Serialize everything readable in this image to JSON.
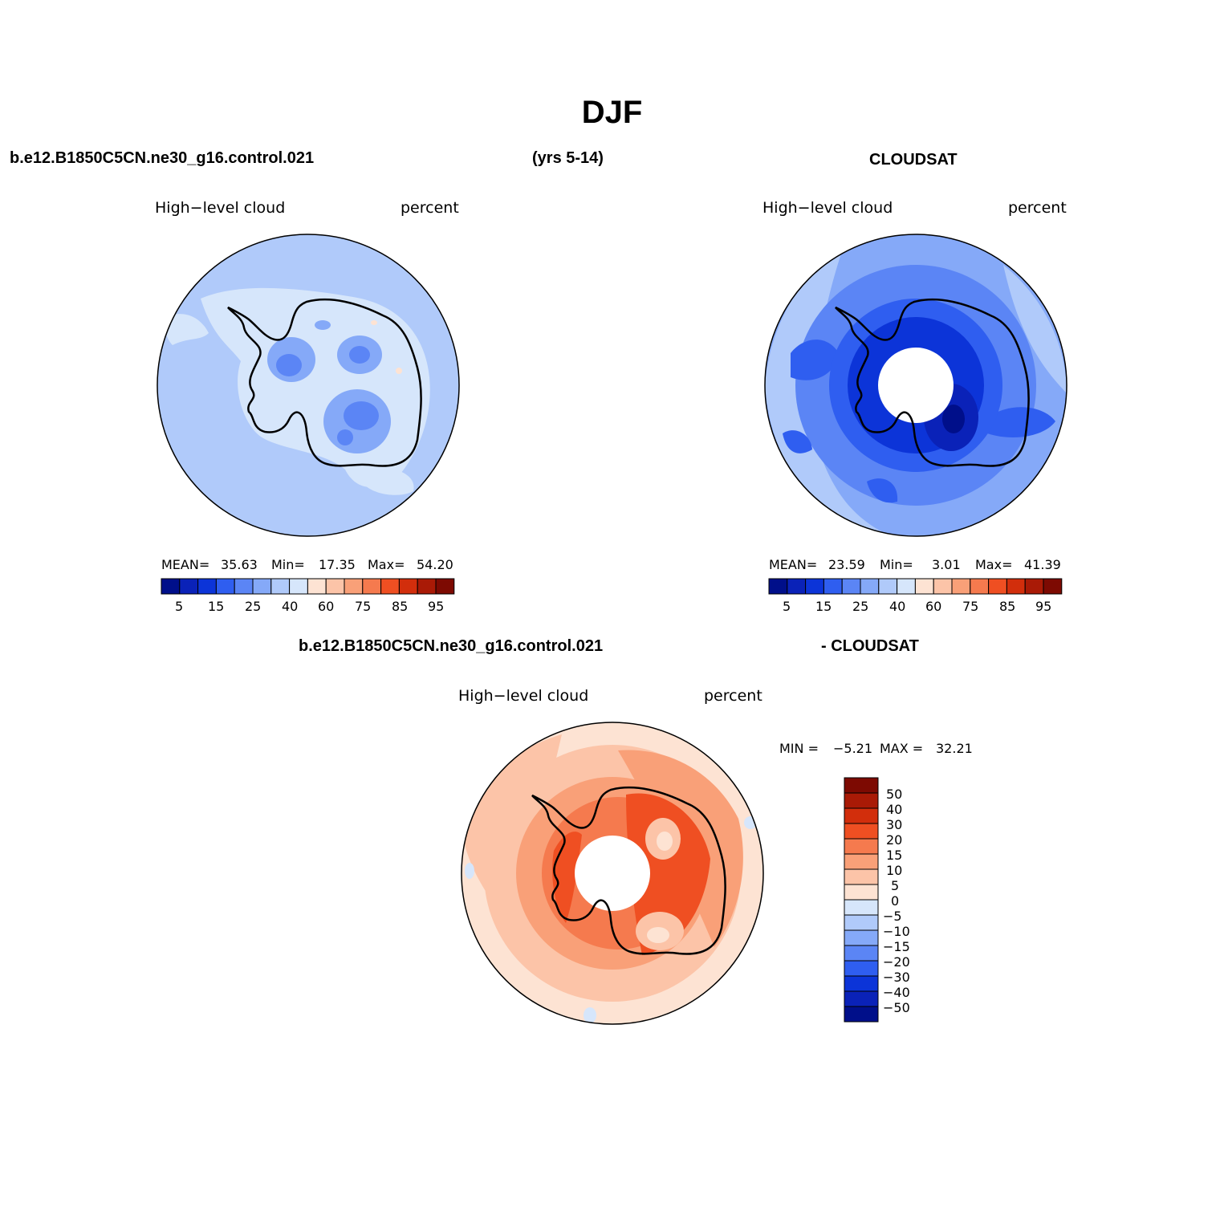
{
  "title": "DJF",
  "header": {
    "case_name": "b.e12.B1850C5CN.ne30_g16.control.021",
    "years": "(yrs 5-14)",
    "obs_name": "CLOUDSAT",
    "diff_case": "b.e12.B1850C5CN.ne30_g16.control.021",
    "diff_obs": "- CLOUDSAT"
  },
  "panels": [
    {
      "id": "model",
      "variable": "High−level cloud",
      "units": "percent",
      "stats": {
        "mean_label": "MEAN=",
        "mean": "35.63",
        "min_label": "Min=",
        "min": "17.35",
        "max_label": "Max=",
        "max": "54.20"
      }
    },
    {
      "id": "obs",
      "variable": "High−level cloud",
      "units": "percent",
      "stats": {
        "mean_label": "MEAN=",
        "mean": "23.59",
        "min_label": "Min=",
        "min": "3.01",
        "max_label": "Max=",
        "max": "41.39"
      }
    },
    {
      "id": "diff",
      "variable": "High−level cloud",
      "units": "percent",
      "stats": {
        "min_label": "MIN =",
        "min": "−5.21",
        "max_label": "MAX =",
        "max": "32.21"
      }
    }
  ],
  "colorbar_horizontal": {
    "colors": [
      "#000f8a",
      "#0a22b8",
      "#0c34d8",
      "#2f5ef0",
      "#5b85f5",
      "#85a9f8",
      "#b0cafa",
      "#d6e6fb",
      "#fde3d3",
      "#fcc4a8",
      "#f9a078",
      "#f57a4e",
      "#ef4f22",
      "#d22e0c",
      "#a91a06",
      "#7d0a02"
    ],
    "tick_labels": [
      "5",
      "15",
      "25",
      "40",
      "60",
      "75",
      "85",
      "95"
    ]
  },
  "colorbar_vertical": {
    "colors": [
      "#000f8a",
      "#0a22b8",
      "#0c34d8",
      "#2f5ef0",
      "#5b85f5",
      "#85a9f8",
      "#b0cafa",
      "#d6e6fb",
      "#fde3d3",
      "#fcc4a8",
      "#f9a078",
      "#f57a4e",
      "#ef4f22",
      "#d22e0c",
      "#a91a06",
      "#7d0a02"
    ],
    "tick_labels": [
      "50",
      "40",
      "30",
      "20",
      "15",
      "10",
      "5",
      "0",
      "−5",
      "−10",
      "−15",
      "−20",
      "−30",
      "−40",
      "−50"
    ]
  }
}
